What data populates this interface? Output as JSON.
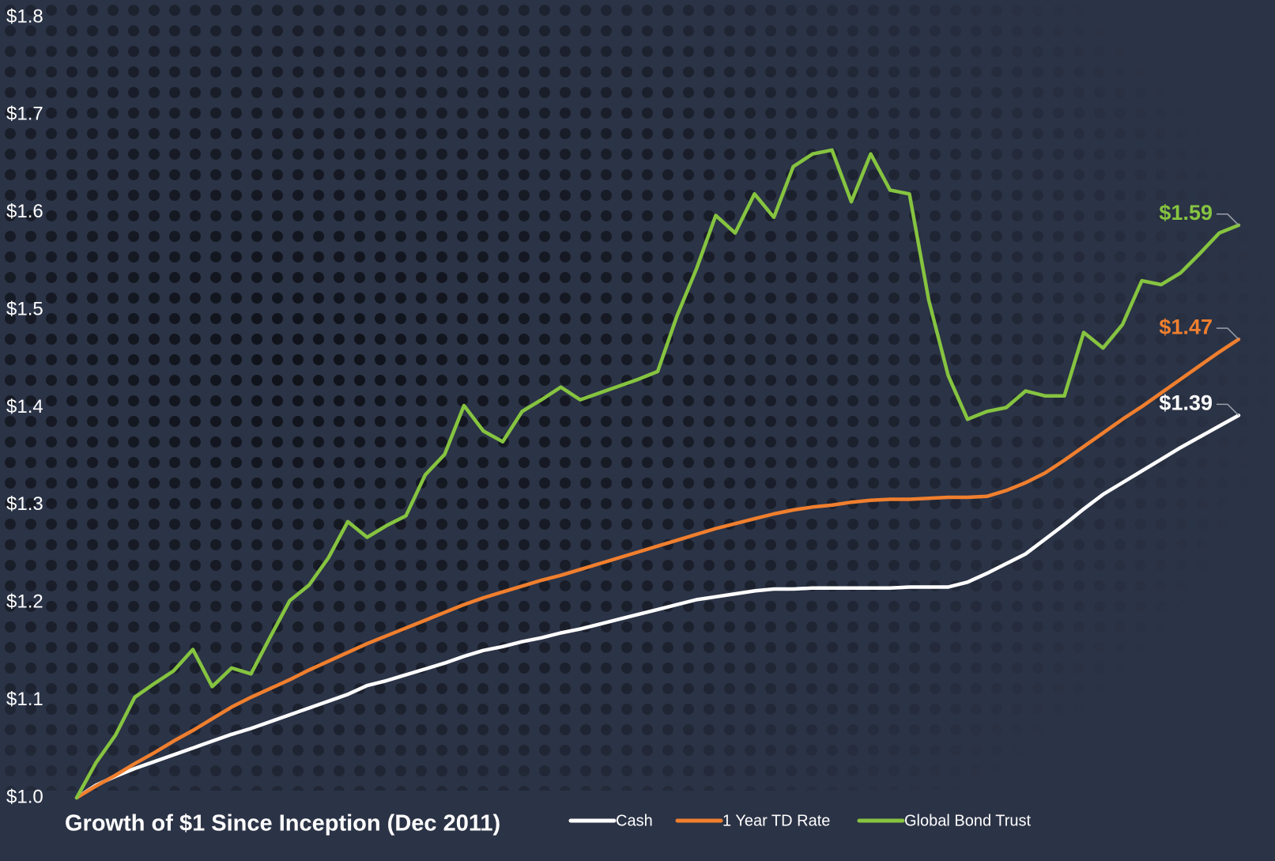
{
  "chart_data": {
    "type": "line",
    "title": "Growth of $1 Since Inception (Dec 2011)",
    "categories": [
      null,
      null,
      null,
      null,
      null,
      null,
      null,
      null,
      null,
      null,
      null,
      null,
      null,
      null,
      null,
      null,
      null,
      null,
      null,
      null,
      null,
      null,
      null,
      null,
      null,
      null,
      null,
      null,
      null,
      null,
      null,
      null,
      null,
      null,
      null,
      null,
      null,
      null,
      null,
      null,
      null,
      null,
      null,
      null,
      null,
      null,
      null,
      null,
      null,
      null,
      null,
      null,
      null,
      null,
      null,
      null,
      null,
      null,
      null,
      null,
      null
    ],
    "series": [
      {
        "name": "Cash",
        "color": "#ffffff",
        "values": [
          1.0,
          1.013,
          1.022,
          1.03,
          1.037,
          1.044,
          1.051,
          1.058,
          1.065,
          1.071,
          1.078,
          1.085,
          1.092,
          1.099,
          1.106,
          1.115,
          1.12,
          1.126,
          1.132,
          1.138,
          1.145,
          1.151,
          1.155,
          1.16,
          1.164,
          1.169,
          1.173,
          1.178,
          1.183,
          1.188,
          1.193,
          1.198,
          1.203,
          1.206,
          1.209,
          1.212,
          1.214,
          1.214,
          1.215,
          1.215,
          1.215,
          1.215,
          1.215,
          1.216,
          1.216,
          1.216,
          1.221,
          1.23,
          1.24,
          1.25,
          1.265,
          1.28,
          1.296,
          1.311,
          1.323,
          1.335,
          1.347,
          1.359,
          1.37,
          1.381,
          1.392
        ],
        "value_labels": [
          null,
          null,
          null,
          null,
          null,
          null,
          null,
          null,
          null,
          null,
          null,
          null,
          null,
          null,
          null,
          null,
          null,
          null,
          null,
          null,
          null,
          null,
          null,
          null,
          null,
          null,
          null,
          null,
          null,
          null,
          null,
          null,
          null,
          null,
          null,
          null,
          null,
          null,
          null,
          null,
          null,
          null,
          null,
          null,
          null,
          null,
          null,
          null,
          null,
          null,
          null,
          null,
          null,
          null,
          null,
          null,
          null,
          null,
          null,
          null,
          "$1.39"
        ]
      },
      {
        "name": "1 Year TD Rate",
        "color": "#f07f2e",
        "values": [
          1.0,
          1.012,
          1.023,
          1.035,
          1.046,
          1.058,
          1.069,
          1.081,
          1.093,
          1.103,
          1.112,
          1.121,
          1.131,
          1.14,
          1.149,
          1.158,
          1.166,
          1.174,
          1.182,
          1.19,
          1.198,
          1.205,
          1.211,
          1.217,
          1.223,
          1.228,
          1.234,
          1.24,
          1.246,
          1.252,
          1.258,
          1.264,
          1.27,
          1.276,
          1.281,
          1.286,
          1.291,
          1.295,
          1.298,
          1.3,
          1.303,
          1.305,
          1.306,
          1.306,
          1.307,
          1.308,
          1.308,
          1.309,
          1.315,
          1.323,
          1.333,
          1.346,
          1.36,
          1.374,
          1.388,
          1.401,
          1.415,
          1.429,
          1.443,
          1.457,
          1.47
        ],
        "value_labels": [
          null,
          null,
          null,
          null,
          null,
          null,
          null,
          null,
          null,
          null,
          null,
          null,
          null,
          null,
          null,
          null,
          null,
          null,
          null,
          null,
          null,
          null,
          null,
          null,
          null,
          null,
          null,
          null,
          null,
          null,
          null,
          null,
          null,
          null,
          null,
          null,
          null,
          null,
          null,
          null,
          null,
          null,
          null,
          null,
          null,
          null,
          null,
          null,
          null,
          null,
          null,
          null,
          null,
          null,
          null,
          null,
          null,
          null,
          null,
          null,
          "$1.47"
        ]
      },
      {
        "name": "Global Bond Trust",
        "color": "#86c440",
        "values": [
          1.0,
          1.036,
          1.064,
          1.103,
          1.117,
          1.13,
          1.152,
          1.114,
          1.133,
          1.127,
          1.165,
          1.202,
          1.218,
          1.246,
          1.283,
          1.267,
          1.279,
          1.289,
          1.331,
          1.352,
          1.402,
          1.376,
          1.365,
          1.396,
          1.408,
          1.421,
          1.408,
          1.415,
          1.422,
          1.429,
          1.437,
          1.494,
          1.542,
          1.597,
          1.579,
          1.619,
          1.595,
          1.647,
          1.66,
          1.664,
          1.611,
          1.66,
          1.623,
          1.619,
          1.51,
          1.433,
          1.388,
          1.396,
          1.4,
          1.417,
          1.412,
          1.412,
          1.477,
          1.461,
          1.485,
          1.53,
          1.526,
          1.538,
          1.558,
          1.579,
          1.587
        ],
        "value_labels": [
          null,
          null,
          null,
          null,
          null,
          null,
          null,
          null,
          null,
          null,
          null,
          null,
          null,
          null,
          null,
          null,
          null,
          null,
          null,
          null,
          null,
          null,
          null,
          null,
          null,
          null,
          null,
          null,
          null,
          null,
          null,
          null,
          null,
          null,
          null,
          null,
          null,
          null,
          null,
          null,
          null,
          null,
          null,
          null,
          null,
          null,
          null,
          null,
          null,
          null,
          null,
          null,
          null,
          null,
          null,
          null,
          null,
          null,
          null,
          null,
          "$1.59"
        ]
      }
    ],
    "ylim": [
      1.0,
      1.8
    ],
    "yticks": [
      {
        "value": 1.0,
        "label": "$1.0"
      },
      {
        "value": 1.1,
        "label": "$1.1"
      },
      {
        "value": 1.2,
        "label": "$1.2"
      },
      {
        "value": 1.3,
        "label": "$1.3"
      },
      {
        "value": 1.4,
        "label": "$1.4"
      },
      {
        "value": 1.5,
        "label": "$1.5"
      },
      {
        "value": 1.6,
        "label": "$1.6"
      },
      {
        "value": 1.7,
        "label": "$1.7"
      },
      {
        "value": 1.8,
        "label": "$1.8"
      }
    ],
    "grid": false,
    "legend": "bottom"
  }
}
